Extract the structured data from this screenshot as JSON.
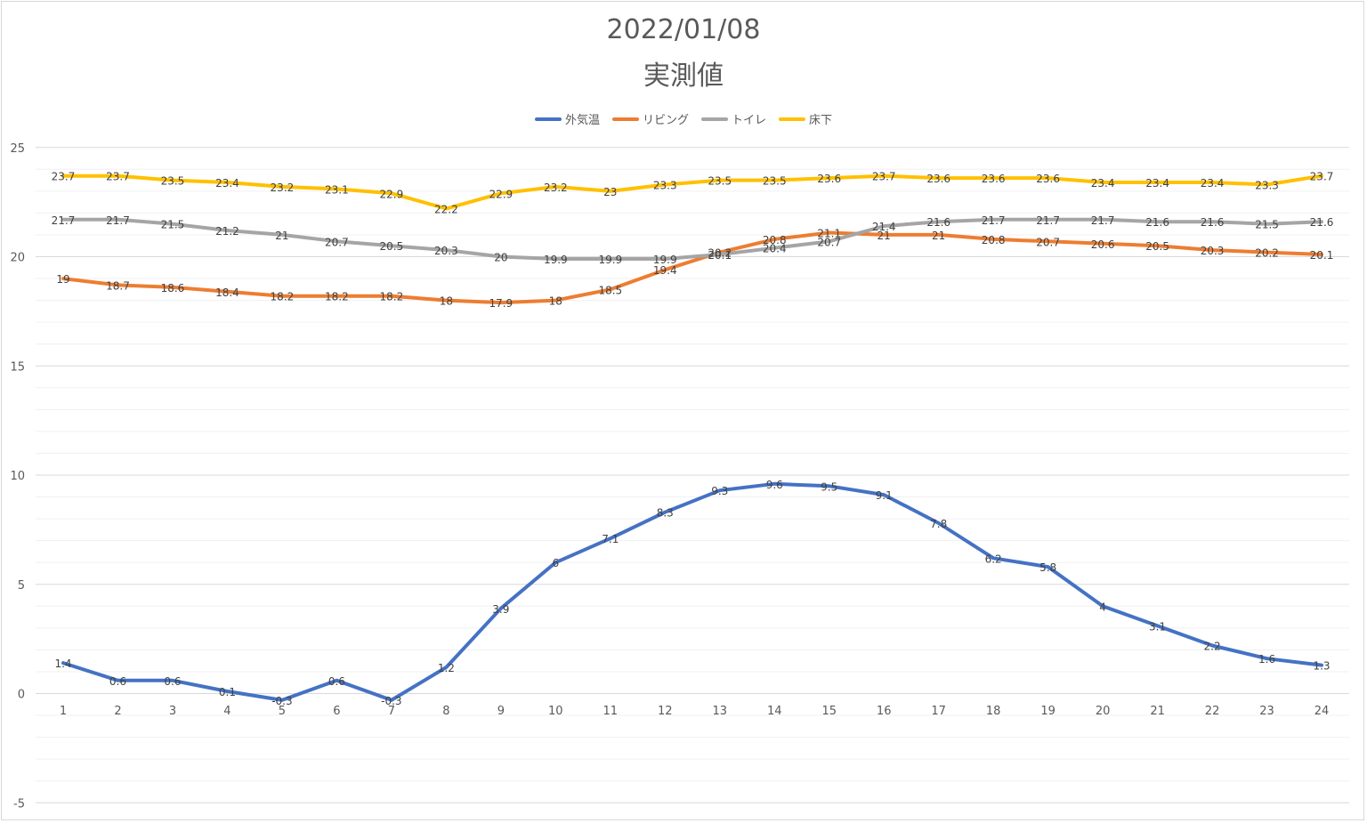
{
  "chart_data": {
    "type": "line",
    "title": "2022/01/08",
    "subtitle": "実測値",
    "xlabel": "",
    "ylabel": "",
    "ylim": [
      -5,
      25
    ],
    "y_ticks": [
      25,
      20,
      15,
      10,
      5,
      0,
      -5
    ],
    "grid": true,
    "legend_position": "top",
    "categories": [
      "1",
      "2",
      "3",
      "4",
      "5",
      "6",
      "7",
      "8",
      "9",
      "10",
      "11",
      "12",
      "13",
      "14",
      "15",
      "16",
      "17",
      "18",
      "19",
      "20",
      "21",
      "22",
      "23",
      "24"
    ],
    "series": [
      {
        "name": "外気温",
        "color": "#4472c4",
        "values": [
          1.4,
          0.6,
          0.6,
          0.1,
          -0.3,
          0.6,
          -0.3,
          1.2,
          3.9,
          6,
          7.1,
          8.3,
          9.3,
          9.6,
          9.5,
          9.1,
          7.8,
          6.2,
          5.8,
          4,
          3.1,
          2.2,
          1.6,
          1.3
        ]
      },
      {
        "name": "リビング",
        "color": "#ed7d31",
        "values": [
          19,
          18.7,
          18.6,
          18.4,
          18.2,
          18.2,
          18.2,
          18,
          17.9,
          18,
          18.5,
          19.4,
          20.2,
          20.8,
          21.1,
          21,
          21,
          20.8,
          20.7,
          20.6,
          20.5,
          20.3,
          20.2,
          20.1
        ]
      },
      {
        "name": "トイレ",
        "color": "#a5a5a5",
        "values": [
          21.7,
          21.7,
          21.5,
          21.2,
          21,
          20.7,
          20.5,
          20.3,
          20,
          19.9,
          19.9,
          19.9,
          20.1,
          20.4,
          20.7,
          21.4,
          21.6,
          21.7,
          21.7,
          21.7,
          21.6,
          21.6,
          21.5,
          21.6
        ]
      },
      {
        "name": "床下",
        "color": "#ffc000",
        "values": [
          23.7,
          23.7,
          23.5,
          23.4,
          23.2,
          23.1,
          22.9,
          22.2,
          22.9,
          23.2,
          23,
          23.3,
          23.5,
          23.5,
          23.6,
          23.7,
          23.6,
          23.6,
          23.6,
          23.4,
          23.4,
          23.4,
          23.3,
          23.7
        ]
      }
    ]
  }
}
